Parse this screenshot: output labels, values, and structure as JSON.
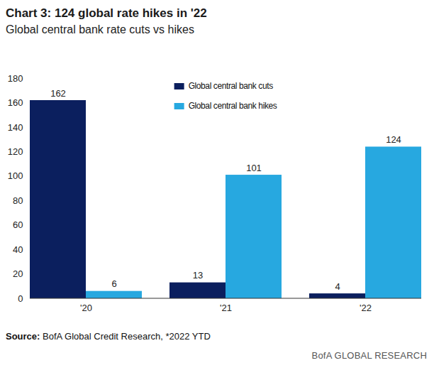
{
  "chart_data": {
    "type": "bar",
    "title": "Chart 3: 124 global rate hikes in '22",
    "subtitle": "Global central bank rate cuts vs hikes",
    "categories": [
      "'20",
      "'21",
      "'22"
    ],
    "series": [
      {
        "name": "Global central bank cuts",
        "color": "#0b1f5e",
        "values": [
          162,
          13,
          4
        ]
      },
      {
        "name": "Global central bank hikes",
        "color": "#27a8e0",
        "values": [
          6,
          101,
          124
        ]
      }
    ],
    "ylim": [
      0,
      180
    ],
    "yticks": [
      0,
      20,
      40,
      60,
      80,
      100,
      120,
      140,
      160,
      180
    ],
    "grid": false,
    "legend": "top",
    "data_labels": true,
    "source": "Source: BofA Global Credit Research, *2022 YTD",
    "footer": "BofA GLOBAL RESEARCH"
  }
}
